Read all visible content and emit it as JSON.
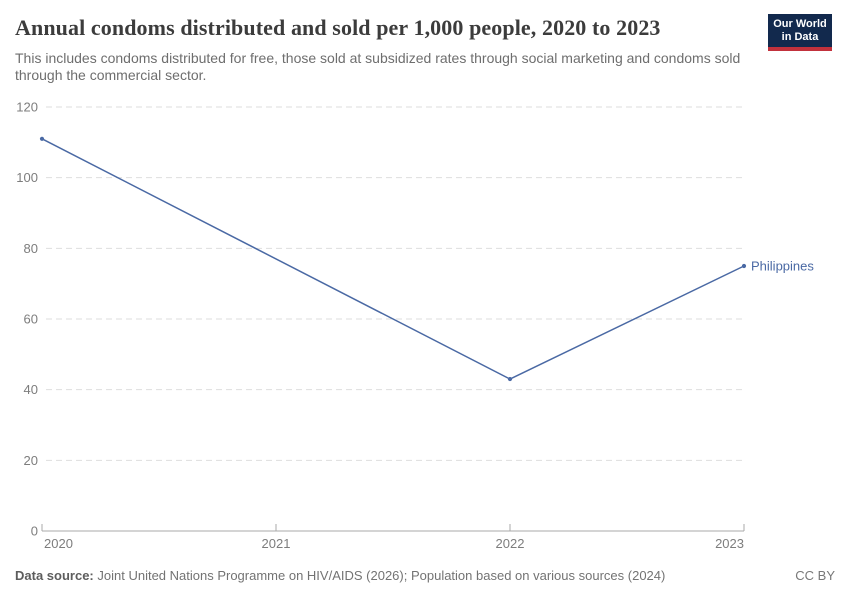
{
  "header": {
    "title": "Annual condoms distributed and sold per 1,000 people, 2020 to 2023",
    "subtitle": "This includes condoms distributed for free, those sold at subsidized rates through social marketing and condoms sold through the commercial sector."
  },
  "logo": {
    "line1": "Our World",
    "line2": "in Data",
    "bg_color": "#12294d",
    "bar_color": "#c2313c"
  },
  "chart_data": {
    "type": "line",
    "title": "Annual condoms distributed and sold per 1,000 people, 2020 to 2023",
    "x": [
      2020,
      2022,
      2023
    ],
    "series": [
      {
        "name": "Philippines",
        "values": [
          111,
          43,
          75
        ],
        "color": "#4a69a4"
      }
    ],
    "xlim": [
      2020,
      2023
    ],
    "ylim": [
      0,
      120
    ],
    "xticks": [
      2020,
      2021,
      2022,
      2023
    ],
    "yticks": [
      0,
      20,
      40,
      60,
      80,
      100,
      120
    ],
    "xlabel": "",
    "ylabel": "",
    "grid": "horizontal-dashed",
    "legend": "line-end-label"
  },
  "footer": {
    "data_source_label": "Data source:",
    "data_source_text": "Joint United Nations Programme on HIV/AIDS (2026); Population based on various sources (2024)",
    "license": "CC BY"
  },
  "colors": {
    "line": "#4a69a4",
    "grid": "#dedede",
    "axis": "#a8a8a8",
    "tick_label": "#7d7d7d"
  }
}
